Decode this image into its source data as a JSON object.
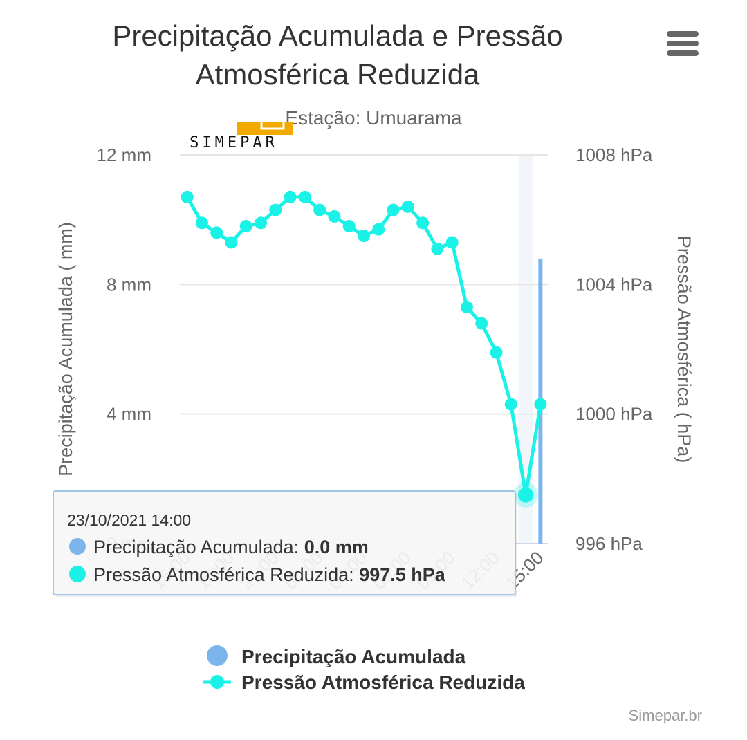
{
  "menu": {
    "icon": "hamburger-menu-icon"
  },
  "logo": {
    "text": "SIMEPAR",
    "accent_color": "#F2A900"
  },
  "credits": "Simepar.br",
  "tooltip": {
    "header": "23/10/2021 14:00",
    "rows": [
      {
        "label": "Precipitação Acumulada: ",
        "value": "0.0 mm",
        "color": "#7CB5EC"
      },
      {
        "label": "Pressão Atmosférica Reduzida: ",
        "value": "997.5 hPa",
        "color": "#1AF2E8"
      }
    ]
  },
  "chart_data": {
    "type": "line",
    "title": "Precipitação Acumulada e Pressão Atmosférica Reduzida",
    "subtitle": "Estação: Umuarama",
    "x_tick_labels": [
      "15:00",
      "18:00",
      "21:00",
      "00:00",
      "03:00",
      "06:00",
      "09:00",
      "12:00",
      "15:00"
    ],
    "y_left": {
      "label": "Precipitação Acumulada ( mm)",
      "ticks": [
        "0 mm",
        "4 mm",
        "8 mm",
        "12 mm"
      ],
      "range": [
        0,
        12
      ]
    },
    "y_right": {
      "label": "Pressão Atmosférica ( hPa)",
      "ticks": [
        "996 hPa",
        "1000 hPa",
        "1004 hPa",
        "1008 hPa"
      ],
      "range": [
        996,
        1008
      ]
    },
    "series": [
      {
        "name": "Precipitação Acumulada",
        "type": "column",
        "axis": "left",
        "color": "#7CB5EC",
        "values": [
          0,
          0,
          0,
          0,
          0,
          0,
          0,
          0,
          0,
          0,
          0,
          0,
          0,
          0,
          0,
          0,
          0,
          0,
          0,
          0,
          0,
          0,
          0,
          0,
          8.8
        ]
      },
      {
        "name": "Pressão Atmosférica Reduzida",
        "type": "line",
        "axis": "right",
        "color": "#1AF2E8",
        "values": [
          1006.7,
          1005.9,
          1005.6,
          1005.3,
          1005.8,
          1005.9,
          1006.3,
          1006.7,
          1006.7,
          1006.3,
          1006.1,
          1005.8,
          1005.5,
          1005.7,
          1006.3,
          1006.4,
          1005.9,
          1005.1,
          1005.3,
          1003.3,
          1002.8,
          1001.9,
          1000.3,
          997.5,
          1000.3
        ]
      }
    ],
    "highlighted_index": 23,
    "legend_position": "bottom-center",
    "grid": true
  }
}
